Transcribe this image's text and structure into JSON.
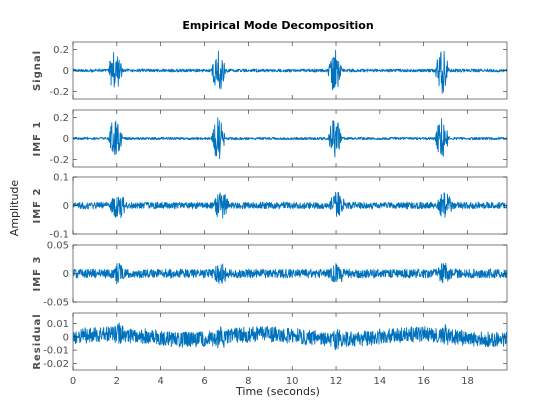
{
  "chart_data": {
    "type": "line",
    "title": "Empirical Mode Decomposition",
    "xlabel": "Time (seconds)",
    "ylabel": "Amplitude",
    "xlim": [
      0,
      19.8
    ],
    "xticks": [
      0,
      2,
      4,
      6,
      8,
      10,
      12,
      14,
      16,
      18
    ],
    "grid": false,
    "line_color": "#0072bd",
    "bursts": [
      {
        "start": 1.6,
        "end": 2.5
      },
      {
        "start": 6.3,
        "end": 7.2
      },
      {
        "start": 11.6,
        "end": 12.5
      },
      {
        "start": 16.5,
        "end": 17.4
      }
    ],
    "panels": [
      {
        "name": "Signal",
        "ylim": [
          -0.27,
          0.27
        ],
        "yticks": [
          0.2,
          0,
          -0.2
        ],
        "ytick_labels": [
          "0.2",
          "0",
          "-0.2"
        ],
        "baseline_amp": 0.015,
        "burst_amp": 0.25
      },
      {
        "name": "IMF 1",
        "ylim": [
          -0.27,
          0.27
        ],
        "yticks": [
          0.2,
          0,
          -0.2
        ],
        "ytick_labels": [
          "0.2",
          "0",
          "-0.2"
        ],
        "baseline_amp": 0.012,
        "burst_amp": 0.24
      },
      {
        "name": "IMF 2",
        "ylim": [
          -0.1,
          0.1
        ],
        "yticks": [
          0.1,
          0,
          -0.1
        ],
        "ytick_labels": [
          "0.1",
          "0",
          "-0.1"
        ],
        "baseline_amp": 0.012,
        "burst_amp": 0.05
      },
      {
        "name": "IMF 3",
        "ylim": [
          -0.05,
          0.05
        ],
        "yticks": [
          0.05,
          0,
          -0.05
        ],
        "ytick_labels": [
          "0.05",
          "0",
          "-0.05"
        ],
        "baseline_amp": 0.008,
        "burst_amp": 0.02
      },
      {
        "name": "Residual",
        "ylim": [
          -0.025,
          0.018
        ],
        "yticks": [
          0.01,
          0,
          -0.01,
          -0.02
        ],
        "ytick_labels": [
          "0.01",
          "0",
          "-0.01",
          "-0.02"
        ],
        "baseline_amp": 0.006,
        "burst_amp": 0.009
      }
    ]
  }
}
